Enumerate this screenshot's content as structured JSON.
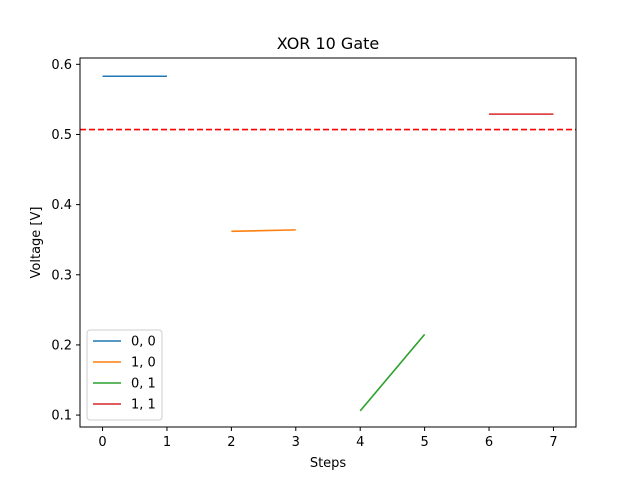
{
  "chart_data": {
    "type": "line",
    "title": "XOR 10 Gate",
    "xlabel": "Steps",
    "ylabel": "Voltage [V]",
    "xlim": [
      -0.35,
      7.35
    ],
    "ylim": [
      0.083,
      0.609
    ],
    "xticks": [
      0,
      1,
      2,
      3,
      4,
      5,
      6,
      7
    ],
    "yticks": [
      0.1,
      0.2,
      0.3,
      0.4,
      0.5,
      0.6
    ],
    "ytick_labels": [
      "0.1",
      "0.2",
      "0.3",
      "0.4",
      "0.5",
      "0.6"
    ],
    "grid": false,
    "legend_position": "lower-left",
    "series": [
      {
        "name": "0, 0",
        "color": "#1f77b4",
        "x": [
          0,
          1
        ],
        "y": [
          0.583,
          0.583
        ]
      },
      {
        "name": "1, 0",
        "color": "#ff7f0e",
        "x": [
          2,
          3
        ],
        "y": [
          0.362,
          0.364
        ]
      },
      {
        "name": "0, 1",
        "color": "#2ca02c",
        "x": [
          4,
          5
        ],
        "y": [
          0.106,
          0.215
        ]
      },
      {
        "name": "1, 1",
        "color": "#d62728",
        "x": [
          6,
          7
        ],
        "y": [
          0.529,
          0.529
        ]
      }
    ],
    "threshold": {
      "y": 0.507,
      "color": "#ff0000",
      "style": "dashed"
    }
  }
}
